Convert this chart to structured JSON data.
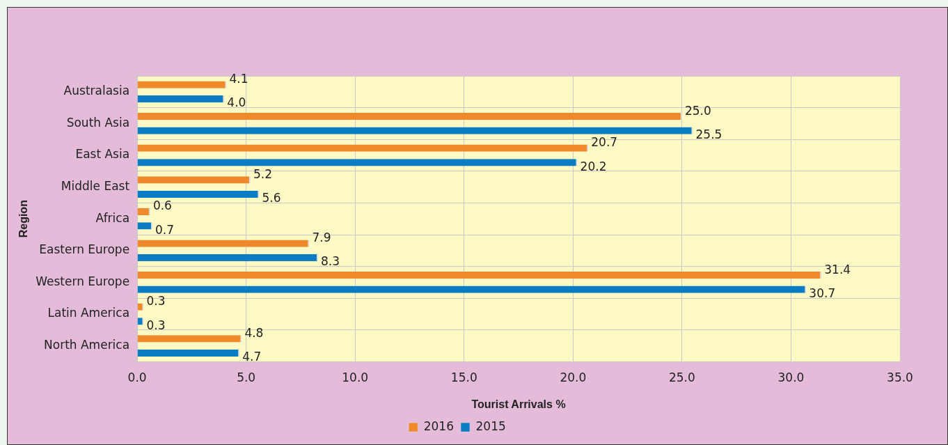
{
  "chart_data": {
    "type": "bar",
    "orientation": "horizontal",
    "xlabel": "Tourist Arrivals %",
    "ylabel": "Region",
    "categories": [
      "Australasia",
      "South Asia",
      "East Asia",
      "Middle East",
      "Africa",
      "Eastern Europe",
      "Western Europe",
      "Latin America",
      "North America"
    ],
    "series": [
      {
        "name": "2016",
        "color": "#f0892c",
        "values": [
          4.1,
          25.0,
          20.7,
          5.2,
          0.6,
          7.9,
          31.4,
          0.3,
          4.8
        ],
        "value_labels": [
          "4.1",
          "25.0",
          "20.7",
          "5.2",
          "0.6",
          "7.9",
          "31.4",
          "0.3",
          "4.8"
        ]
      },
      {
        "name": "2015",
        "color": "#0a7cc4",
        "values": [
          4.0,
          25.5,
          20.2,
          5.6,
          0.7,
          8.3,
          30.7,
          0.3,
          4.7
        ],
        "value_labels": [
          "4.0",
          "25.5",
          "20.2",
          "5.6",
          "0.7",
          "8.3",
          "30.7",
          "0.3",
          "4.7"
        ]
      }
    ],
    "xlim": [
      0,
      35
    ],
    "xticks": [
      {
        "value": 0,
        "label": "0.0"
      },
      {
        "value": 5,
        "label": "5.0"
      },
      {
        "value": 10,
        "label": "10.0"
      },
      {
        "value": 15,
        "label": "15.0"
      },
      {
        "value": 20,
        "label": "20.0"
      },
      {
        "value": 25,
        "label": "25.0"
      },
      {
        "value": 30,
        "label": "30.0"
      },
      {
        "value": 35,
        "label": "35.0"
      }
    ],
    "grid": true,
    "legend": "bottom"
  }
}
